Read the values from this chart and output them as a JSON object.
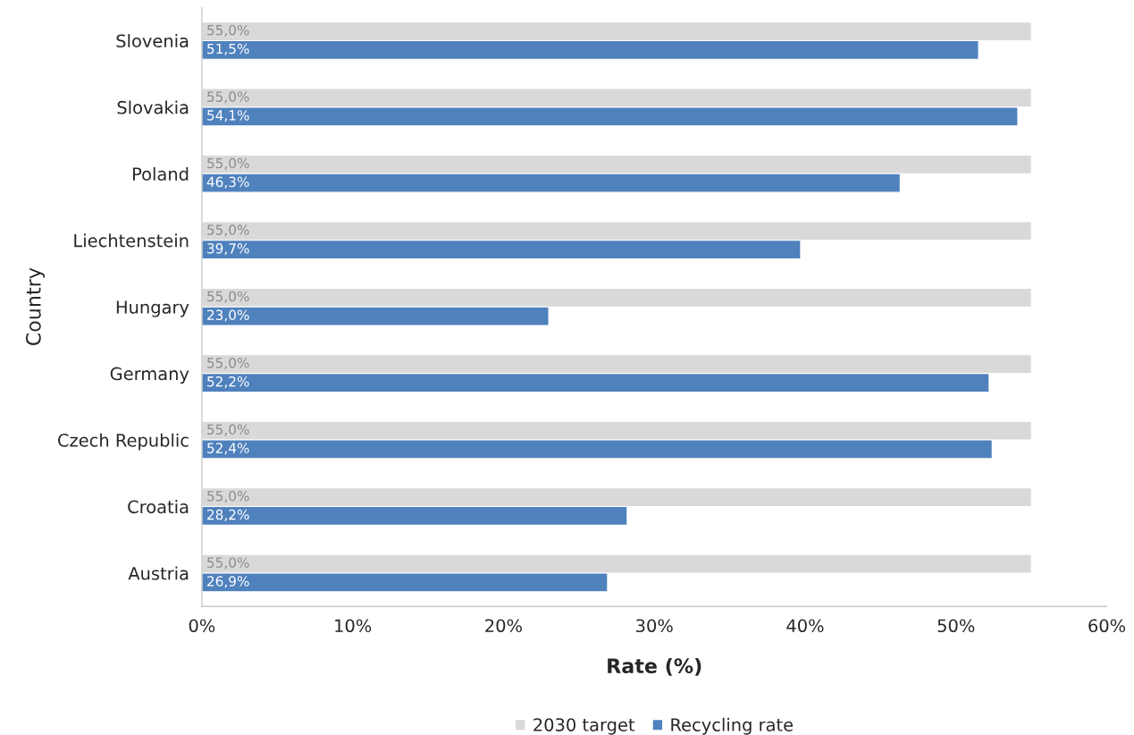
{
  "chart_data": {
    "type": "bar",
    "orientation": "horizontal",
    "xlabel": "Rate (%)",
    "ylabel": "Country",
    "categories": [
      "Slovenia",
      "Slovakia",
      "Poland",
      "Liechtenstein",
      "Hungary",
      "Germany",
      "Czech Republic",
      "Croatia",
      "Austria"
    ],
    "series": [
      {
        "name": "2030 target",
        "color": "#d9d9d9",
        "values": [
          55.0,
          55.0,
          55.0,
          55.0,
          55.0,
          55.0,
          55.0,
          55.0,
          55.0
        ],
        "value_labels": [
          "55,0%",
          "55,0%",
          "55,0%",
          "55,0%",
          "55,0%",
          "55,0%",
          "55,0%",
          "55,0%",
          "55,0%"
        ]
      },
      {
        "name": "Recycling rate",
        "color": "#4f81bd",
        "values": [
          51.5,
          54.1,
          46.3,
          39.7,
          23.0,
          52.2,
          52.4,
          28.2,
          26.9
        ],
        "value_labels": [
          "51,5%",
          "54,1%",
          "46,3%",
          "39,7%",
          "23,0%",
          "52,2%",
          "52,4%",
          "28,2%",
          "26,9%"
        ]
      }
    ],
    "xlim": [
      0,
      60
    ],
    "xticks": [
      {
        "value": 0,
        "label": "0%"
      },
      {
        "value": 10,
        "label": "10%"
      },
      {
        "value": 20,
        "label": "20%"
      },
      {
        "value": 30,
        "label": "30%"
      },
      {
        "value": 40,
        "label": "40%"
      },
      {
        "value": 50,
        "label": "50%"
      },
      {
        "value": 60,
        "label": "60%"
      }
    ],
    "grid": false,
    "legend": "bottom"
  }
}
